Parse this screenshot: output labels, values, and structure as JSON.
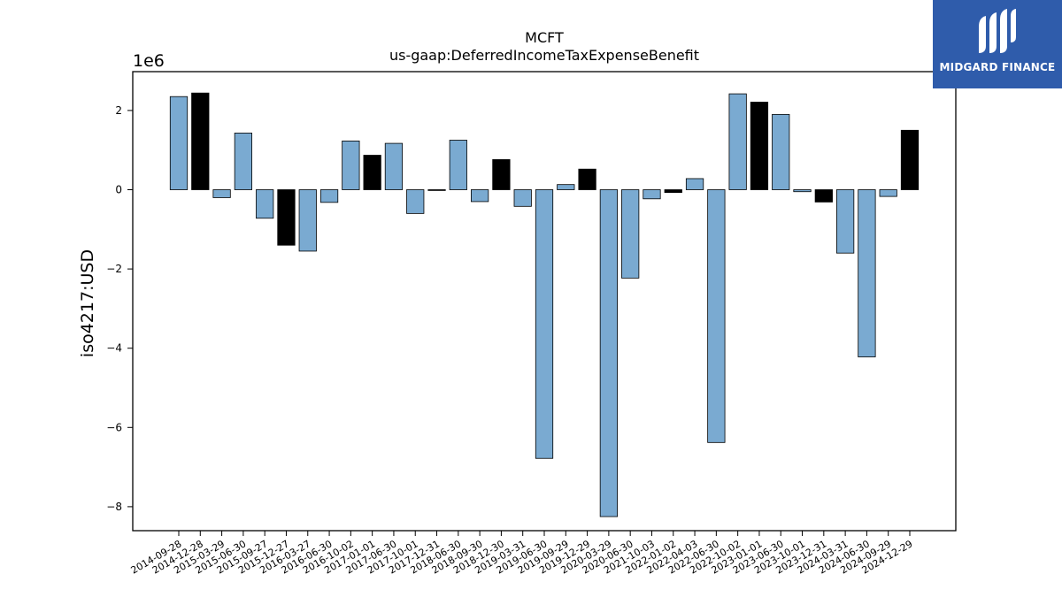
{
  "chart_data": {
    "type": "bar",
    "title": "MCFT",
    "subtitle": "us-gaap:DeferredIncomeTaxExpenseBenefit",
    "ylabel": "iso4217:USD",
    "offset_label": "1e6",
    "ylim": [
      -8.7,
      3.0
    ],
    "yticks": [
      -8,
      -6,
      -4,
      -2,
      0,
      2
    ],
    "ytick_labels": [
      "−8",
      "−6",
      "−4",
      "−2",
      "0",
      "2"
    ],
    "categories": [
      "2014-09-28",
      "2014-12-28",
      "2015-03-29",
      "2015-06-30",
      "2015-09-27",
      "2015-12-27",
      "2016-03-27",
      "2016-06-30",
      "2016-10-02",
      "2017-01-01",
      "2017-06-30",
      "2017-10-01",
      "2017-12-31",
      "2018-06-30",
      "2018-09-30",
      "2018-12-30",
      "2019-03-31",
      "2019-06-30",
      "2019-09-29",
      "2019-12-29",
      "2020-03-29",
      "2020-06-30",
      "2021-10-03",
      "2022-01-02",
      "2022-04-03",
      "2022-06-30",
      "2022-10-02",
      "2023-01-01",
      "2023-06-30",
      "2023-10-01",
      "2023-12-31",
      "2024-03-31",
      "2024-06-30",
      "2024-09-29",
      "2024-12-29"
    ],
    "values": [
      2.35,
      2.44,
      -0.2,
      1.43,
      -0.72,
      -1.4,
      -1.55,
      -0.32,
      1.23,
      0.87,
      1.17,
      -0.6,
      -0.02,
      1.25,
      -0.3,
      0.76,
      -0.42,
      -6.78,
      0.13,
      0.52,
      -8.25,
      -2.23,
      -0.23,
      -0.07,
      0.28,
      -6.38,
      2.42,
      2.21,
      1.9,
      -0.05,
      -0.31,
      -1.6,
      -4.22,
      -0.17,
      1.5
    ],
    "bar_colors": [
      "#7aaad1",
      "#000000",
      "#7aaad1",
      "#7aaad1",
      "#7aaad1",
      "#000000",
      "#7aaad1",
      "#7aaad1",
      "#7aaad1",
      "#000000",
      "#7aaad1",
      "#7aaad1",
      "#000000",
      "#7aaad1",
      "#7aaad1",
      "#000000",
      "#7aaad1",
      "#7aaad1",
      "#7aaad1",
      "#000000",
      "#7aaad1",
      "#7aaad1",
      "#7aaad1",
      "#000000",
      "#7aaad1",
      "#7aaad1",
      "#7aaad1",
      "#000000",
      "#7aaad1",
      "#7aaad1",
      "#000000",
      "#7aaad1",
      "#7aaad1",
      "#7aaad1",
      "#000000"
    ],
    "grid": false,
    "legend": "none"
  },
  "logo": {
    "text": "MIDGARD FINANCE"
  }
}
